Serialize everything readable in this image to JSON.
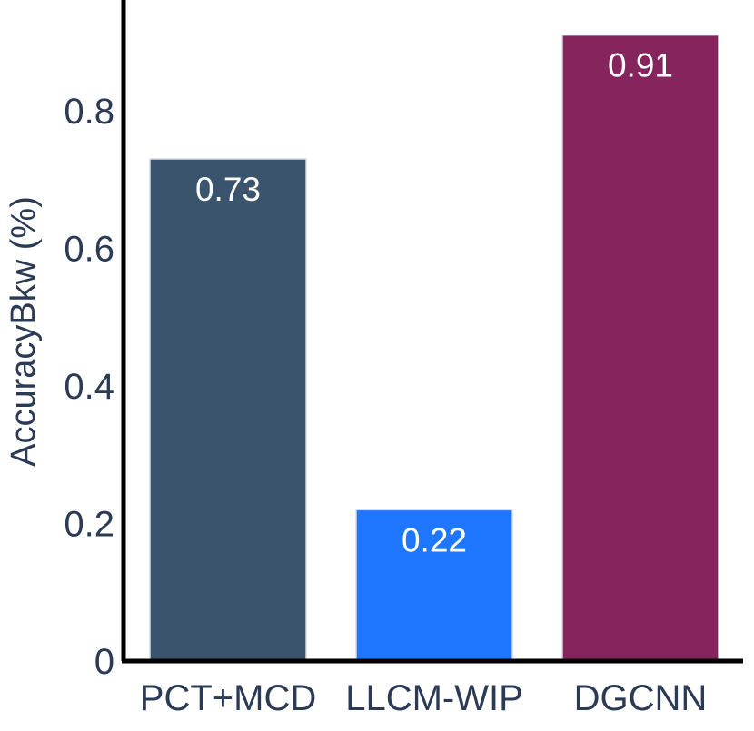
{
  "chart_data": {
    "type": "bar",
    "categories": [
      "PCT+MCD",
      "LLCM-WIP",
      "DGCNN"
    ],
    "values": [
      0.73,
      0.22,
      0.91
    ],
    "value_labels": [
      "0.73",
      "0.22",
      "0.91"
    ],
    "colors": [
      "#3a546e",
      "#1f77ff",
      "#86245e"
    ],
    "title": "",
    "xlabel": "",
    "ylabel": "AccuracyBkw (%)",
    "ylim": [
      0,
      0.95
    ],
    "yticks": [
      0,
      0.2,
      0.4,
      0.6,
      0.8
    ],
    "ytick_labels": [
      "0",
      "0.2",
      "0.4",
      "0.6",
      "0.8"
    ],
    "grid": false,
    "legend": "none"
  }
}
